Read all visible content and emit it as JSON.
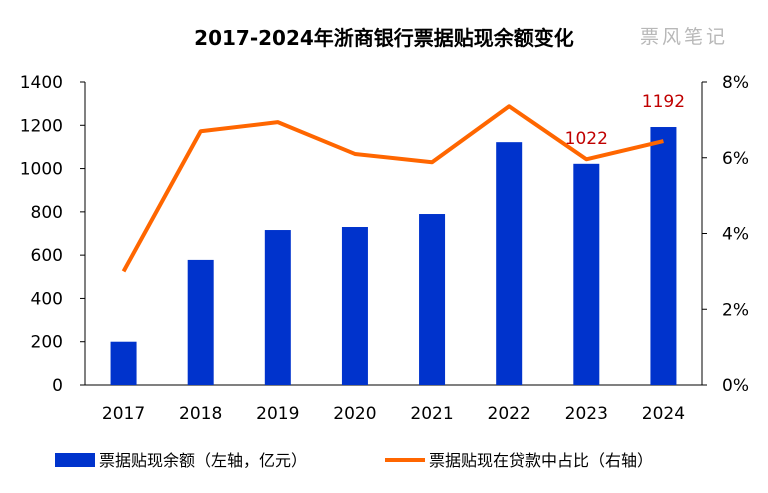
{
  "watermark": "票风笔记",
  "chart_data": {
    "type": "bar+line",
    "title": "2017-2024年浙商银行票据贴现余额变化",
    "categories": [
      "2017",
      "2018",
      "2019",
      "2020",
      "2021",
      "2022",
      "2023",
      "2024"
    ],
    "series": [
      {
        "name": "票据贴现余额（左轴，亿元）",
        "type": "bar",
        "axis": "left",
        "color": "#0033cc",
        "values": [
          200,
          578,
          716,
          730,
          790,
          1122,
          1022,
          1192
        ]
      },
      {
        "name": "票据贴现在贷款中占比（右轴）",
        "type": "line",
        "axis": "right",
        "color": "#ff6600",
        "values": [
          3.0,
          6.7,
          6.94,
          6.1,
          5.88,
          7.36,
          5.96,
          6.44
        ]
      }
    ],
    "data_labels": [
      {
        "category": "2023",
        "text": "1022"
      },
      {
        "category": "2024",
        "text": "1192"
      }
    ],
    "y_left": {
      "range": [
        0,
        1400
      ],
      "ticks": [
        "0",
        "200",
        "400",
        "600",
        "800",
        "1000",
        "1200",
        "1400"
      ]
    },
    "y_right": {
      "range": [
        0,
        8
      ],
      "ticks": [
        "0%",
        "2%",
        "4%",
        "6%",
        "8%"
      ]
    },
    "grid": false,
    "legend": "bottom"
  }
}
